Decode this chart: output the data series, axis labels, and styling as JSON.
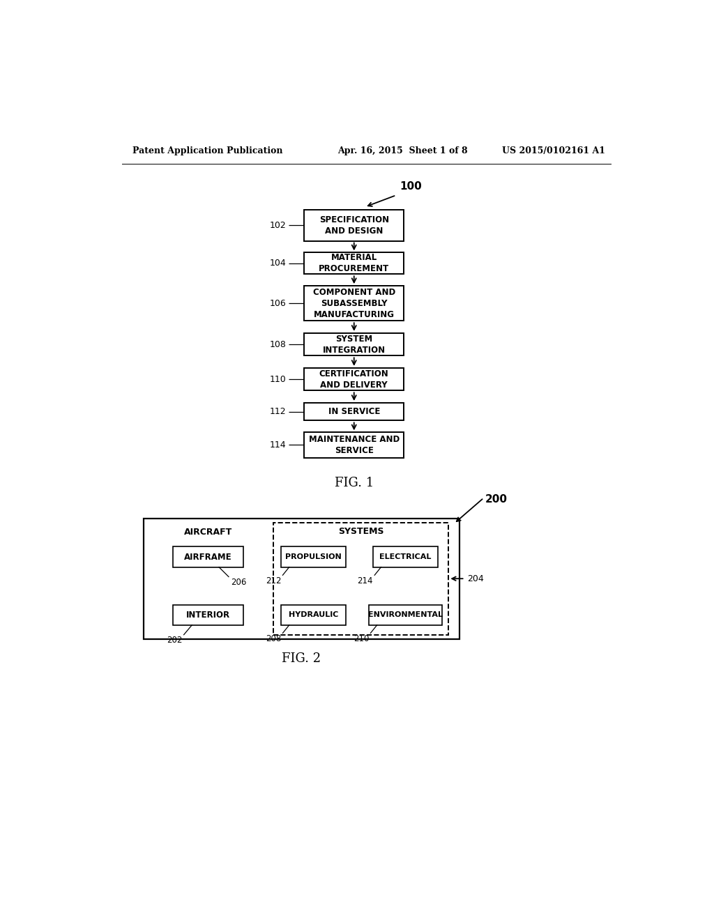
{
  "header_left": "Patent Application Publication",
  "header_center": "Apr. 16, 2015  Sheet 1 of 8",
  "header_right": "US 2015/0102161 A1",
  "fig1_label": "FIG. 1",
  "fig2_label": "FIG. 2",
  "fig1_ref": "100",
  "fig1_boxes": [
    {
      "label": "SPECIFICATION\nAND DESIGN",
      "ref": "102"
    },
    {
      "label": "MATERIAL\nPROCUREMENT",
      "ref": "104"
    },
    {
      "label": "COMPONENT AND\nSUBASSEMBLY\nMANUFACTURING",
      "ref": "106"
    },
    {
      "label": "SYSTEM\nINTEGRATION",
      "ref": "108"
    },
    {
      "label": "CERTIFICATION\nAND DELIVERY",
      "ref": "110"
    },
    {
      "label": "IN SERVICE",
      "ref": "112"
    },
    {
      "label": "MAINTENANCE AND\nSERVICE",
      "ref": "114"
    }
  ],
  "fig2_ref": "200",
  "fig2_outer_ref": "204",
  "fig2_aircraft_label": "AIRCRAFT",
  "fig2_systems_label": "SYSTEMS",
  "bg_color": "#ffffff",
  "text_color": "#000000"
}
